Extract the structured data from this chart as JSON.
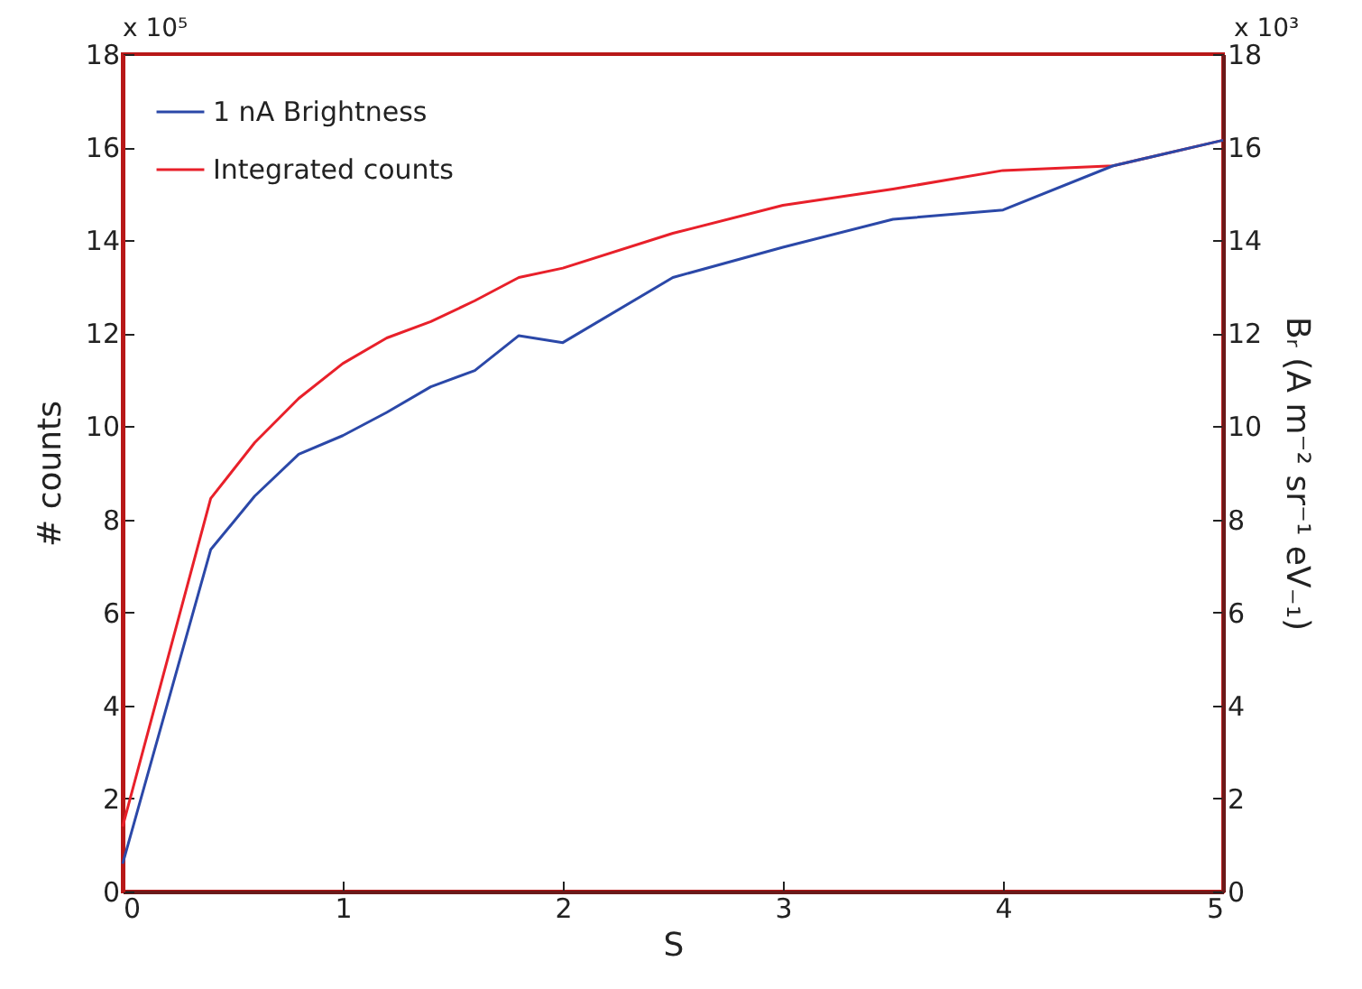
{
  "chart_data": {
    "type": "line",
    "xlabel": "S",
    "ylabel": "# counts",
    "y2label": "Bᵣ (A m⁻² sr⁻¹ eV₋₁)",
    "annotations": [
      "x 10⁵",
      "x 10³"
    ],
    "x": [
      0,
      0.4,
      0.6,
      0.8,
      1,
      1.2,
      1.4,
      1.6,
      1.8,
      2,
      2.5,
      3,
      3.5,
      4,
      4.5,
      5
    ],
    "series": [
      {
        "name": "1 nA Brightness",
        "color": "#2b48a8",
        "axis": "y2",
        "values": [
          0.6,
          7.35,
          8.5,
          9.4,
          9.8,
          10.3,
          10.85,
          11.2,
          11.95,
          11.8,
          13.2,
          13.85,
          14.45,
          14.65,
          15.6,
          16.15
        ]
      },
      {
        "name": "Integrated counts",
        "color": "#e8202a",
        "values": [
          1.4,
          8.45,
          9.65,
          10.6,
          11.35,
          11.9,
          12.25,
          12.7,
          13.2,
          13.4,
          14.15,
          14.75,
          15.1,
          15.5,
          15.6,
          16.15
        ]
      }
    ],
    "xlim": [
      0,
      5
    ],
    "xticks": [
      0,
      1,
      2,
      3,
      4,
      5
    ],
    "ylim": [
      0,
      18
    ],
    "yticks": [
      0,
      2,
      4,
      6,
      8,
      10,
      12,
      14,
      16,
      18
    ],
    "y2lim": [
      0,
      18
    ],
    "y2ticks": [
      0,
      2,
      4,
      6,
      8,
      10,
      12,
      14,
      16,
      18
    ],
    "legend": "top left",
    "grid": false,
    "marker": "none",
    "line_style": "solid"
  }
}
